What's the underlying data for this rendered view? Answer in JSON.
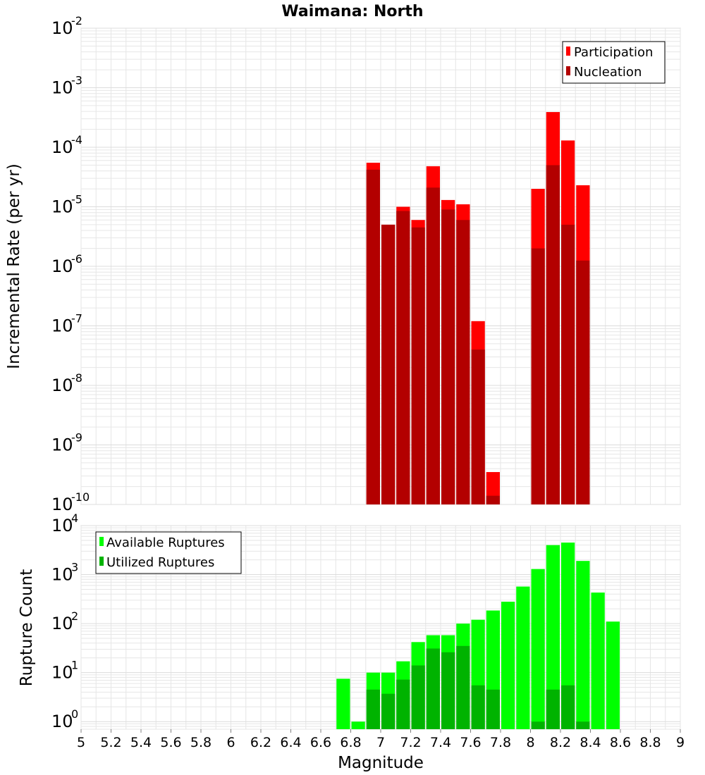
{
  "colors": {
    "participation": "#ff0000",
    "nucleation": "#b30000",
    "available": "#00ff00",
    "utilized": "#00b300",
    "grid": "#e6e6e6",
    "plot_border": "#c0c0c0"
  },
  "chart_data": [
    {
      "type": "bar",
      "title": "Waimana: North",
      "xlabel": "",
      "ylabel": "Incremental Rate (per yr)",
      "y_scale": "log",
      "ylim": [
        1e-10,
        0.01
      ],
      "y_tick_exponents": [
        -10,
        -9,
        -8,
        -7,
        -6,
        -5,
        -4,
        -3,
        -2
      ],
      "x_range": [
        5,
        9
      ],
      "bin_width": 0.1,
      "legend_position": "top-right",
      "series": [
        {
          "name": "Participation",
          "color_key": "participation",
          "x": [
            6.95,
            7.05,
            7.15,
            7.25,
            7.35,
            7.45,
            7.55,
            7.65,
            7.75,
            8.05,
            8.15,
            8.25,
            8.35
          ],
          "values": [
            5.5e-05,
            5e-06,
            1e-05,
            6e-06,
            4.8e-05,
            1.3e-05,
            1.1e-05,
            1.2e-07,
            3.5e-10,
            2e-05,
            0.00039,
            0.00013,
            2.3e-05
          ]
        },
        {
          "name": "Nucleation",
          "color_key": "nucleation",
          "x": [
            6.95,
            7.05,
            7.15,
            7.25,
            7.35,
            7.45,
            7.55,
            7.65,
            7.75,
            8.05,
            8.15,
            8.25,
            8.35
          ],
          "values": [
            4.2e-05,
            5e-06,
            8.5e-06,
            4.5e-06,
            2.1e-05,
            9e-06,
            6e-06,
            4e-08,
            1.4e-10,
            2e-06,
            5e-05,
            5e-06,
            1.25e-06
          ]
        }
      ]
    },
    {
      "type": "bar",
      "title": "",
      "xlabel": "Magnitude",
      "ylabel": "Rupture Count",
      "y_scale": "log",
      "ylim": [
        0.7,
        10000.0
      ],
      "y_tick_exponents": [
        0,
        1,
        2,
        3,
        4
      ],
      "x_range": [
        5,
        9
      ],
      "x_ticks": [
        "5",
        "5.2",
        "5.4",
        "5.6",
        "5.8",
        "6",
        "6.2",
        "6.4",
        "6.6",
        "6.8",
        "7",
        "7.2",
        "7.4",
        "7.6",
        "7.8",
        "8",
        "8.2",
        "8.4",
        "8.6",
        "8.8",
        "9"
      ],
      "bin_width": 0.1,
      "legend_position": "top-left",
      "series": [
        {
          "name": "Available Ruptures",
          "color_key": "available",
          "x": [
            6.75,
            6.85,
            6.95,
            7.05,
            7.15,
            7.25,
            7.35,
            7.45,
            7.55,
            7.65,
            7.75,
            7.85,
            7.95,
            8.05,
            8.15,
            8.25,
            8.35,
            8.45,
            8.55
          ],
          "values": [
            7.5,
            1.0,
            10,
            10,
            17,
            42,
            58,
            58,
            100,
            120,
            185,
            280,
            570,
            1300,
            4000,
            4500,
            1900,
            430,
            110
          ]
        },
        {
          "name": "Utilized Ruptures",
          "color_key": "utilized",
          "x": [
            6.95,
            7.05,
            7.15,
            7.25,
            7.35,
            7.45,
            7.55,
            7.65,
            7.75,
            8.05,
            8.15,
            8.25,
            8.35
          ],
          "values": [
            4.5,
            3.7,
            7.2,
            14,
            31,
            26,
            35,
            5.5,
            4.5,
            1.0,
            4.5,
            5.5,
            1.0
          ]
        }
      ]
    }
  ]
}
